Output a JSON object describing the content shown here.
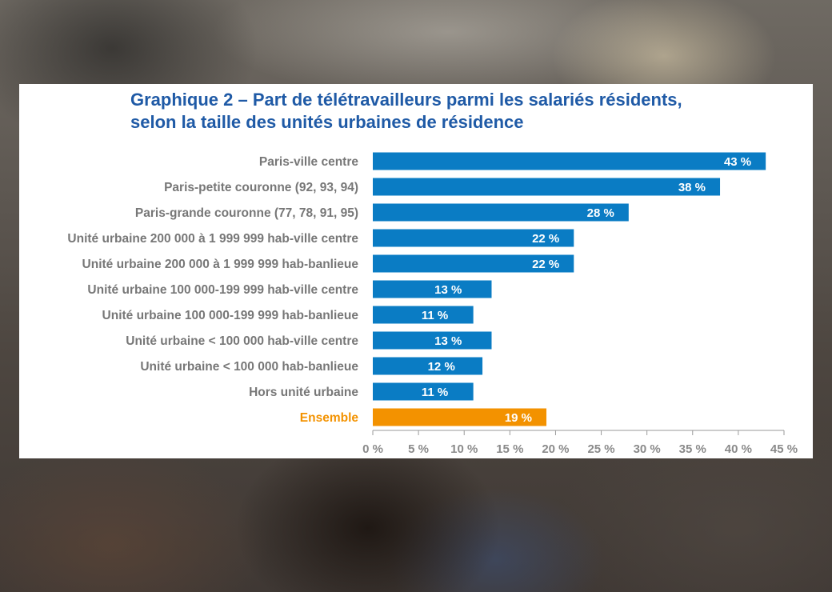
{
  "chart_data": {
    "type": "bar",
    "orientation": "horizontal",
    "title_lines": [
      "Graphique 2 – Part de télétravailleurs parmi les salariés résidents,",
      "selon la taille des unités urbaines de résidence"
    ],
    "categories": [
      "Paris-ville centre",
      "Paris-petite couronne (92, 93, 94)",
      "Paris-grande couronne (77, 78, 91, 95)",
      "Unité urbaine 200 000 à 1 999 999 hab-ville centre",
      "Unité urbaine 200 000 à 1 999 999 hab-banlieue",
      "Unité urbaine 100 000-199 999 hab-ville centre",
      "Unité urbaine 100 000-199 999 hab-banlieue",
      "Unité urbaine < 100 000 hab-ville centre",
      "Unité urbaine < 100 000 hab-banlieue",
      "Hors unité urbaine",
      "Ensemble"
    ],
    "values": [
      43,
      38,
      28,
      22,
      22,
      13,
      11,
      13,
      12,
      11,
      19
    ],
    "value_labels": [
      "43 %",
      "38 %",
      "28 %",
      "22 %",
      "22 %",
      "13 %",
      "11 %",
      "13 %",
      "12 %",
      "11 %",
      "19 %"
    ],
    "highlight_category": "Ensemble",
    "xlim": [
      0,
      45
    ],
    "x_ticks": [
      0,
      5,
      10,
      15,
      20,
      25,
      30,
      35,
      40,
      45
    ],
    "x_tick_labels": [
      "0 %",
      "5 %",
      "10 %",
      "15 %",
      "20 %",
      "25 %",
      "30 %",
      "35 %",
      "40 %",
      "45 %"
    ],
    "grid": false,
    "colors": {
      "bar": "#0a7cc4",
      "highlight_bar": "#f39200",
      "title": "#1f5aa6",
      "category_text": "#777777",
      "highlight_text": "#f39200",
      "axis": "#9a9a9a"
    }
  }
}
